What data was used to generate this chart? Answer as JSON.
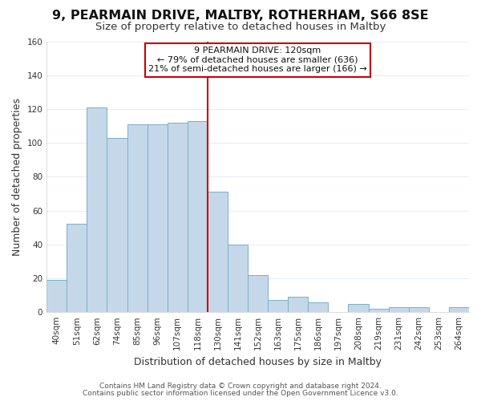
{
  "title": "9, PEARMAIN DRIVE, MALTBY, ROTHERHAM, S66 8SE",
  "subtitle": "Size of property relative to detached houses in Maltby",
  "xlabel": "Distribution of detached houses by size in Maltby",
  "ylabel": "Number of detached properties",
  "bar_labels": [
    "40sqm",
    "51sqm",
    "62sqm",
    "74sqm",
    "85sqm",
    "96sqm",
    "107sqm",
    "118sqm",
    "130sqm",
    "141sqm",
    "152sqm",
    "163sqm",
    "175sqm",
    "186sqm",
    "197sqm",
    "208sqm",
    "219sqm",
    "231sqm",
    "242sqm",
    "253sqm",
    "264sqm"
  ],
  "bar_heights": [
    19,
    52,
    121,
    103,
    111,
    111,
    112,
    113,
    71,
    40,
    22,
    7,
    9,
    6,
    0,
    5,
    2,
    3,
    3,
    0,
    3
  ],
  "highlight_index": 7,
  "bar_color": "#c5d8ea",
  "bar_edge_color": "#7aafc8",
  "highlight_line_color": "#cc0000",
  "annotation_text": "9 PEARMAIN DRIVE: 120sqm\n← 79% of detached houses are smaller (636)\n21% of semi-detached houses are larger (166) →",
  "annotation_box_edge": "#cc0000",
  "ylim": [
    0,
    160
  ],
  "yticks": [
    0,
    20,
    40,
    60,
    80,
    100,
    120,
    140,
    160
  ],
  "background_color": "#ffffff",
  "grid_color": "#e8eef4",
  "title_fontsize": 11.5,
  "subtitle_fontsize": 9.5,
  "axis_label_fontsize": 9,
  "tick_fontsize": 7.5,
  "footer_fontsize": 6.5,
  "annotation_fontsize": 8
}
